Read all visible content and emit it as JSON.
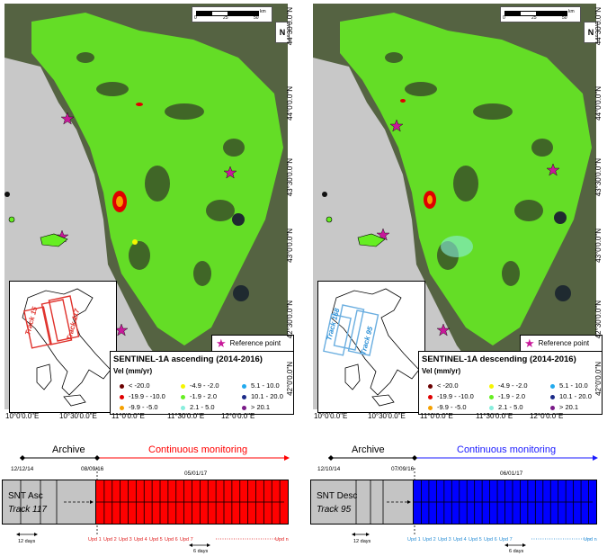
{
  "panels": [
    {
      "id": "left",
      "legend_title": "SENTINEL-1A ascending (2014-2016)",
      "legend_unit": "Vel (mm/yr)",
      "track_labels": [
        "Track 15",
        "Track 117"
      ],
      "track_color": "#e0322c",
      "timeline": {
        "archive_label": "Archive",
        "monitoring_label": "Continuous monitoring",
        "monitoring_color": "#ff0000",
        "arrow_color": "#ff0000",
        "date_start": "12/12/14",
        "date_switch": "08/09/16",
        "date_mid": "05/01/17",
        "snt_name": "SNT Asc",
        "snt_track": "Track 117",
        "updates": [
          "Upd 1",
          "Upd 2",
          "Upd 3",
          "Upd 4",
          "Upd 5",
          "Upd 6",
          "Upd 7",
          "Upd n"
        ],
        "update_color": "#e02020",
        "archive_interval": "12 days",
        "monitoring_interval": "6 days"
      }
    },
    {
      "id": "right",
      "legend_title": "SENTINEL-1A descending (2014-2016)",
      "legend_unit": "Vel (mm/yr)",
      "track_labels": [
        "Track 168",
        "Track 95"
      ],
      "track_color": "#6aaee0",
      "timeline": {
        "archive_label": "Archive",
        "monitoring_label": "Continuous monitoring",
        "monitoring_color": "#0000ff",
        "arrow_color": "#1a1aff",
        "date_start": "12/10/14",
        "date_switch": "07/09/16",
        "date_mid": "06/01/17",
        "snt_name": "SNT Desc",
        "snt_track": "Track 95",
        "updates": [
          "Upd 1",
          "Upd 2",
          "Upd 3",
          "Upd 4",
          "Upd 5",
          "Upd 6",
          "Upd 7",
          "Upd n"
        ],
        "update_color": "#2a8fd6",
        "archive_interval": "12 days",
        "monitoring_interval": "6 days"
      }
    }
  ],
  "legend_classes": [
    {
      "label": "< -20.0",
      "color": "#6b0000"
    },
    {
      "label": "-19.9 - -10.0",
      "color": "#e00000"
    },
    {
      "label": "-9.9 - -5.0",
      "color": "#f5a000"
    },
    {
      "label": "-4.9 - -2.0",
      "color": "#f5f500"
    },
    {
      "label": "-1.9 - 2.0",
      "color": "#66ee22"
    },
    {
      "label": "2.1 - 5.0",
      "color": "#88eedd"
    },
    {
      "label": "5.1 - 10.0",
      "color": "#22aaee"
    },
    {
      "label": "10.1 - 20.0",
      "color": "#1a2a88"
    },
    {
      "label": "> 20.1",
      "color": "#7a1a88"
    }
  ],
  "reference_label": "Reference point",
  "scale": {
    "ticks": [
      "0",
      "25",
      "50"
    ],
    "unit": "km"
  },
  "north_label": "N",
  "lat_labels": [
    "44°30'0.0\"N",
    "44°0'0.0\"N",
    "43°30'0.0\"N",
    "43°0'0.0\"N",
    "42°30'0.0\"N",
    "42°0'0.0\"N"
  ],
  "lon_labels": [
    "10°0'0.0\"E",
    "10°30'0.0\"E",
    "11°0'0.0\"E",
    "11°30'0.0\"E",
    "12°0'0.0\"E"
  ],
  "colors": {
    "sea": "#c8c8c8",
    "land": "#5c6a48",
    "green_ps": "#66ee22",
    "ref_star": "#c8189a"
  }
}
